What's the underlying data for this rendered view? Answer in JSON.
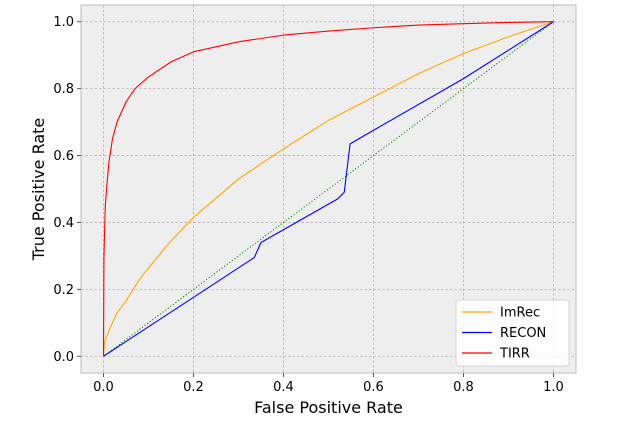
{
  "chart_data": {
    "type": "line",
    "title": "",
    "xlabel": "False Positive Rate",
    "ylabel": "True Positive Rate",
    "xlim": [
      -0.05,
      1.05
    ],
    "ylim": [
      -0.05,
      1.05
    ],
    "xticks": [
      "0.0",
      "0.2",
      "0.4",
      "0.6",
      "0.8",
      "1.0"
    ],
    "yticks": [
      "0.0",
      "0.2",
      "0.4",
      "0.6",
      "0.8",
      "1.0"
    ],
    "grid": true,
    "legend_position": "lower-right",
    "series": [
      {
        "name": "ImRec",
        "color": "#ffa500",
        "style": "solid",
        "points": [
          [
            0,
            0
          ],
          [
            0.002,
            0.04
          ],
          [
            0.01,
            0.07
          ],
          [
            0.02,
            0.1
          ],
          [
            0.03,
            0.13
          ],
          [
            0.05,
            0.165
          ],
          [
            0.08,
            0.23
          ],
          [
            0.14,
            0.33
          ],
          [
            0.2,
            0.415
          ],
          [
            0.3,
            0.53
          ],
          [
            0.4,
            0.62
          ],
          [
            0.5,
            0.705
          ],
          [
            0.6,
            0.775
          ],
          [
            0.7,
            0.845
          ],
          [
            0.8,
            0.905
          ],
          [
            0.9,
            0.955
          ],
          [
            1.0,
            1.0
          ]
        ]
      },
      {
        "name": "RECON",
        "color": "#0000ff",
        "style": "solid",
        "points": [
          [
            0,
            0
          ],
          [
            0.335,
            0.295
          ],
          [
            0.35,
            0.34
          ],
          [
            0.52,
            0.47
          ],
          [
            0.535,
            0.49
          ],
          [
            0.548,
            0.635
          ],
          [
            0.58,
            0.66
          ],
          [
            0.8,
            0.83
          ],
          [
            1.0,
            1.0
          ]
        ]
      },
      {
        "name": "TIRR",
        "color": "#ff0000",
        "style": "solid",
        "points": [
          [
            0,
            0
          ],
          [
            0.001,
            0.3
          ],
          [
            0.004,
            0.45
          ],
          [
            0.008,
            0.52
          ],
          [
            0.012,
            0.58
          ],
          [
            0.02,
            0.65
          ],
          [
            0.03,
            0.7
          ],
          [
            0.05,
            0.76
          ],
          [
            0.07,
            0.8
          ],
          [
            0.1,
            0.835
          ],
          [
            0.15,
            0.88
          ],
          [
            0.2,
            0.91
          ],
          [
            0.3,
            0.94
          ],
          [
            0.4,
            0.96
          ],
          [
            0.5,
            0.972
          ],
          [
            0.6,
            0.982
          ],
          [
            0.7,
            0.99
          ],
          [
            0.8,
            0.994
          ],
          [
            0.9,
            0.998
          ],
          [
            1.0,
            1.0
          ]
        ]
      },
      {
        "color": "#008000",
        "style": "dotted",
        "points": [
          [
            0,
            0
          ],
          [
            1,
            1
          ]
        ]
      }
    ]
  }
}
